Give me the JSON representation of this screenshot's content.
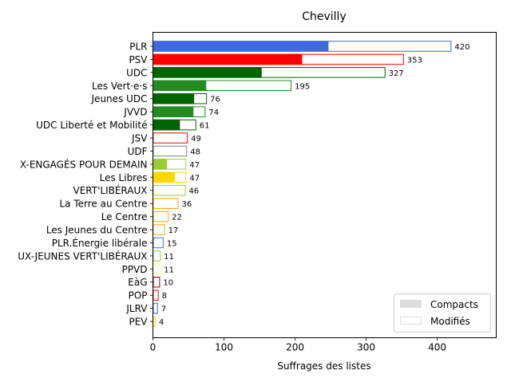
{
  "chart_data": {
    "type": "bar",
    "orientation": "horizontal",
    "stacked": true,
    "title": "Chevilly",
    "xlabel": "Suffrages des listes",
    "ylabel": "",
    "xlim": [
      0,
      483
    ],
    "xticks": [
      0,
      100,
      200,
      300,
      400
    ],
    "grid": false,
    "legend_position": "lower-right",
    "legend": [
      {
        "name": "Compacts",
        "style": "filled",
        "color": "#dddddd"
      },
      {
        "name": "Modifiés",
        "style": "outline",
        "color": "#dddddd"
      }
    ],
    "categories": [
      "PLR",
      "PSV",
      "UDC",
      "Les Vert·e·s",
      "Jeunes UDC",
      "JVVD",
      "UDC Liberté et Mobilité",
      "JSV",
      "UDF",
      "X-ENGAGÉS POUR DEMAIN",
      "Les Libres",
      "VERT'LIBÉRAUX",
      "La Terre au Centre",
      "Le Centre",
      "Les Jeunes du Centre",
      "PLR.Énergie libérale",
      "UX-JEUNES VERT'LIBÉRAUX",
      "PPVD",
      "EàG",
      "POP",
      "JLRV",
      "PEV"
    ],
    "series": [
      {
        "name": "Compacts",
        "values": [
          247,
          210,
          153,
          75,
          58,
          57,
          38,
          0,
          0,
          20,
          31,
          0,
          0,
          0,
          0,
          0,
          0,
          0,
          0,
          0,
          0,
          0
        ]
      },
      {
        "name": "Modifiés",
        "values": [
          173,
          143,
          174,
          120,
          18,
          17,
          23,
          49,
          48,
          27,
          16,
          46,
          36,
          22,
          17,
          15,
          11,
          11,
          10,
          8,
          7,
          4
        ]
      }
    ],
    "totals": [
      420,
      353,
      327,
      195,
      76,
      74,
      61,
      49,
      48,
      47,
      47,
      46,
      36,
      22,
      17,
      15,
      11,
      11,
      10,
      8,
      7,
      4
    ],
    "colors": [
      "#4169e1",
      "#ff0000",
      "#006400",
      "#228b22",
      "#006400",
      "#228b22",
      "#006400",
      "#ff0000",
      "#808080",
      "#9acd32",
      "#ffd700",
      "#9acd32",
      "#ffa500",
      "#ffa500",
      "#ffa500",
      "#4169e1",
      "#9acd32",
      "#ffff80",
      "#8b0000",
      "#ff0000",
      "#4169e1",
      "#ffd700"
    ]
  }
}
